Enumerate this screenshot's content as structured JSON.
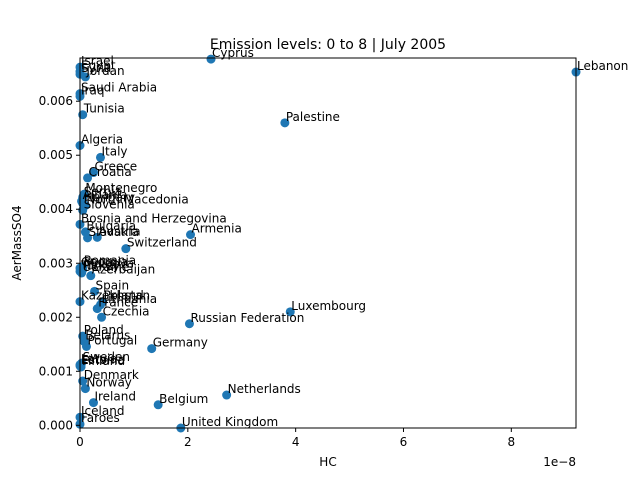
{
  "chart_data": {
    "type": "scatter",
    "title": "Emission levels: 0 to 8 | July 2005",
    "xlabel": "HC",
    "ylabel": "AerMassSO4",
    "x_offset_label": "1e−8",
    "xlim": [
      0,
      9.2e-08
    ],
    "ylim": [
      -5e-05,
      0.0068
    ],
    "x_ticks": [
      {
        "value": 0,
        "label": "0"
      },
      {
        "value": 2e-08,
        "label": "2"
      },
      {
        "value": 4e-08,
        "label": "4"
      },
      {
        "value": 6e-08,
        "label": "6"
      },
      {
        "value": 8e-08,
        "label": "8"
      }
    ],
    "y_ticks": [
      {
        "value": 0,
        "label": "0.000"
      },
      {
        "value": 0.001,
        "label": "0.001"
      },
      {
        "value": 0.002,
        "label": "0.002"
      },
      {
        "value": 0.003,
        "label": "0.003"
      },
      {
        "value": 0.004,
        "label": "0.004"
      },
      {
        "value": 0.005,
        "label": "0.005"
      },
      {
        "value": 0.006,
        "label": "0.006"
      }
    ],
    "grid": false,
    "marker_color": "#1f77b4",
    "points": [
      {
        "label": "Israel",
        "x": 0.0,
        "y": 0.00663
      },
      {
        "label": "Egypt",
        "x": 0.0,
        "y": 0.00655
      },
      {
        "label": "Syria",
        "x": 0.0,
        "y": 0.0065
      },
      {
        "label": "Jordan",
        "x": 1e-09,
        "y": 0.00645
      },
      {
        "label": "Cyprus",
        "x": 2.43e-08,
        "y": 0.00678
      },
      {
        "label": "Lebanon",
        "x": 9.2e-08,
        "y": 0.00654
      },
      {
        "label": "Saudi Arabia",
        "x": 0.0,
        "y": 0.00614
      },
      {
        "label": "Iraq",
        "x": 0.0,
        "y": 0.00609
      },
      {
        "label": "Tunisia",
        "x": 5e-10,
        "y": 0.00575
      },
      {
        "label": "Palestine",
        "x": 3.8e-08,
        "y": 0.0056
      },
      {
        "label": "Algeria",
        "x": 0.0,
        "y": 0.00518
      },
      {
        "label": "Italy",
        "x": 3.8e-09,
        "y": 0.00496
      },
      {
        "label": "Greece",
        "x": 2.5e-09,
        "y": 0.00468
      },
      {
        "label": "Croatia",
        "x": 1.4e-09,
        "y": 0.00458
      },
      {
        "label": "Montenegro",
        "x": 8e-10,
        "y": 0.00428
      },
      {
        "label": "Serbia",
        "x": 5e-10,
        "y": 0.00422
      },
      {
        "label": "Albania",
        "x": 3e-10,
        "y": 0.00415
      },
      {
        "label": "Hungary",
        "x": 5e-10,
        "y": 0.00411
      },
      {
        "label": "North Macedonia",
        "x": 1e-09,
        "y": 0.00407
      },
      {
        "label": "Slovenia",
        "x": 5e-10,
        "y": 0.00398
      },
      {
        "label": "Bosnia and Herzegovina",
        "x": 0.0,
        "y": 0.00372
      },
      {
        "label": "Bulgaria",
        "x": 1e-09,
        "y": 0.00358
      },
      {
        "label": "Armenia",
        "x": 2.05e-08,
        "y": 0.00353
      },
      {
        "label": "Austria",
        "x": 3.2e-09,
        "y": 0.00348
      },
      {
        "label": "Slovakia",
        "x": 1.4e-09,
        "y": 0.00347
      },
      {
        "label": "Switzerland",
        "x": 8.5e-09,
        "y": 0.00327
      },
      {
        "label": "Romania",
        "x": 5e-10,
        "y": 0.00294
      },
      {
        "label": "Georgia",
        "x": 0.0,
        "y": 0.00291
      },
      {
        "label": "Moldova",
        "x": 5e-10,
        "y": 0.00288
      },
      {
        "label": "Turkey",
        "x": 0.0,
        "y": 0.00285
      },
      {
        "label": "Ukraine",
        "x": 3e-10,
        "y": 0.00282
      },
      {
        "label": "Azerbaijan",
        "x": 2e-09,
        "y": 0.00277
      },
      {
        "label": "Spain",
        "x": 2.7e-09,
        "y": 0.00248
      },
      {
        "label": "Kazakhstan",
        "x": 0.0,
        "y": 0.00229
      },
      {
        "label": "Poland",
        "x": 4.2e-09,
        "y": 0.00229
      },
      {
        "label": "Lithuania",
        "x": 3.8e-09,
        "y": 0.00223
      },
      {
        "label": "France",
        "x": 3.2e-09,
        "y": 0.00216
      },
      {
        "label": "Luxembourg",
        "x": 3.9e-08,
        "y": 0.0021
      },
      {
        "label": "Czechia",
        "x": 4e-09,
        "y": 0.002
      },
      {
        "label": "Russian Federation",
        "x": 2.03e-08,
        "y": 0.00188
      },
      {
        "label": "Poland",
        "x": 5e-10,
        "y": 0.00165
      },
      {
        "label": "Belarus",
        "x": 8e-10,
        "y": 0.00155
      },
      {
        "label": "Portugal",
        "x": 1.2e-09,
        "y": 0.00146
      },
      {
        "label": "Germany",
        "x": 1.33e-08,
        "y": 0.00142
      },
      {
        "label": "Sweden",
        "x": 3e-10,
        "y": 0.00115
      },
      {
        "label": "Latvia",
        "x": 0.0,
        "y": 0.00112
      },
      {
        "label": "Estonia",
        "x": 0.0,
        "y": 0.0011
      },
      {
        "label": "Finland",
        "x": 2e-10,
        "y": 0.00108
      },
      {
        "label": "Denmark",
        "x": 5e-10,
        "y": 0.00082
      },
      {
        "label": "Norway",
        "x": 1e-09,
        "y": 0.00068
      },
      {
        "label": "Netherlands",
        "x": 2.72e-08,
        "y": 0.00056
      },
      {
        "label": "Ireland",
        "x": 2.5e-09,
        "y": 0.00042
      },
      {
        "label": "Belgium",
        "x": 1.45e-08,
        "y": 0.00038
      },
      {
        "label": "Iceland",
        "x": 0.0,
        "y": 0.00015
      },
      {
        "label": "Faroes",
        "x": 0.0,
        "y": 2e-05
      },
      {
        "label": "United Kingdom",
        "x": 1.87e-08,
        "y": -5e-05
      }
    ]
  }
}
